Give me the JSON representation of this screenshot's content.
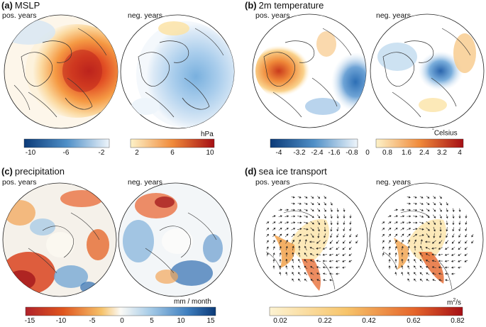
{
  "colors": {
    "neg_dark": "#0b3a78",
    "neg_mid": "#4f8fc7",
    "neg_light": "#c9e1f2",
    "pos_light": "#fbe3a6",
    "pos_mid": "#f08a3a",
    "pos_dark": "#a50f15",
    "ice_light": "#fdf0c8",
    "ice_mid": "#f1a14a",
    "ice_dark": "#b0222a"
  },
  "labels": {
    "pos_years": "pos. years",
    "neg_years": "neg. years"
  },
  "panels": {
    "a": {
      "letter": "(a)",
      "title": "MSLP",
      "unit": "hPa",
      "ticks": [
        "-10",
        "-6",
        "-2",
        "2",
        "6",
        "10"
      ]
    },
    "b": {
      "letter": "(b)",
      "title": "2m temperature",
      "unit_sup": "°",
      "unit": "Celsius",
      "ticks": [
        "-4",
        "-3.2",
        "-2.4",
        "-1.6",
        "-0.8",
        "0",
        "0.8",
        "1.6",
        "2.4",
        "3.2",
        "4"
      ]
    },
    "c": {
      "letter": "(c)",
      "title": "precipitation",
      "unit": "mm / month",
      "ticks": [
        "-15",
        "-10",
        "-5",
        "0",
        "5",
        "10",
        "15"
      ]
    },
    "d": {
      "letter": "(d)",
      "title": "sea ice transport",
      "unit_pre": "m",
      "unit_sup": "2",
      "unit_post": "/s",
      "ticks": [
        "0.02",
        "0.22",
        "0.42",
        "0.62",
        "0.82"
      ]
    }
  }
}
